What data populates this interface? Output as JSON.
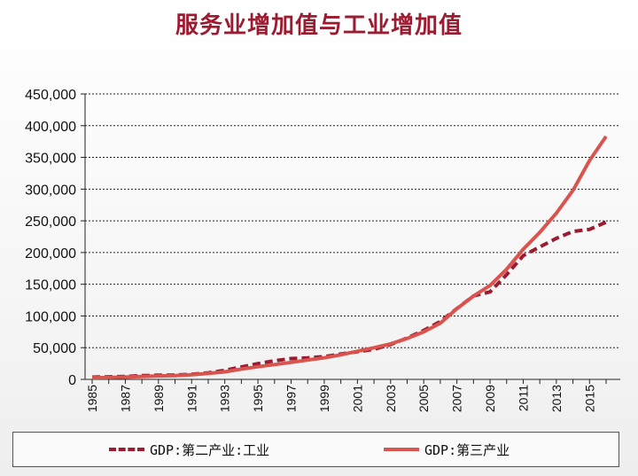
{
  "chart_data": {
    "type": "line",
    "title": "服务业增加值与工业增加值",
    "ylim": [
      0,
      450000
    ],
    "yticks": [
      "0",
      "50,000",
      "100,000",
      "150,000",
      "200,000",
      "250,000",
      "300,000",
      "350,000",
      "400,000",
      "450,000"
    ],
    "ytick_values": [
      0,
      50000,
      100000,
      150000,
      200000,
      250000,
      300000,
      350000,
      400000,
      450000
    ],
    "xlim": [
      1985,
      2016
    ],
    "xticks": [
      "1985",
      "1987",
      "1989",
      "1991",
      "1993",
      "1995",
      "1997",
      "1999",
      "2001",
      "2003",
      "2005",
      "2007",
      "2009",
      "2011",
      "2013",
      "2015"
    ],
    "xtick_values": [
      1985,
      1987,
      1989,
      1991,
      1993,
      1995,
      1997,
      1999,
      2001,
      2003,
      2005,
      2007,
      2009,
      2011,
      2013,
      2015
    ],
    "grid": "horizontal dashed",
    "legend_position": "bottom",
    "x": [
      1985,
      1986,
      1987,
      1988,
      1989,
      1990,
      1991,
      1992,
      1993,
      1994,
      1995,
      1996,
      1997,
      1998,
      1999,
      2000,
      2001,
      2002,
      2003,
      2004,
      2005,
      2006,
      2007,
      2008,
      2009,
      2010,
      2011,
      2012,
      2013,
      2014,
      2015,
      2016
    ],
    "series": [
      {
        "name": "GDP:第二产业:工业",
        "color": "#9b1b30",
        "dash": "dashed",
        "values": [
          3500,
          4000,
          4600,
          5800,
          6500,
          6900,
          8100,
          10300,
          14200,
          19500,
          24900,
          29400,
          32900,
          34000,
          35900,
          40000,
          43600,
          47400,
          54900,
          65200,
          77200,
          91300,
          111700,
          131700,
          138000,
          165100,
          195100,
          208900,
          222300,
          233200,
          236500,
          247900
        ]
      },
      {
        "name": "GDP:第三产业",
        "color": "#d9544f",
        "dash": "solid",
        "values": [
          2600,
          3000,
          3600,
          4600,
          5400,
          5900,
          7300,
          9400,
          11900,
          16200,
          20000,
          23300,
          26900,
          30600,
          33900,
          38700,
          44400,
          49900,
          56000,
          64600,
          74900,
          88600,
          111400,
          131300,
          148000,
          173600,
          205200,
          231900,
          262200,
          298000,
          345000,
          383000
        ]
      }
    ]
  }
}
